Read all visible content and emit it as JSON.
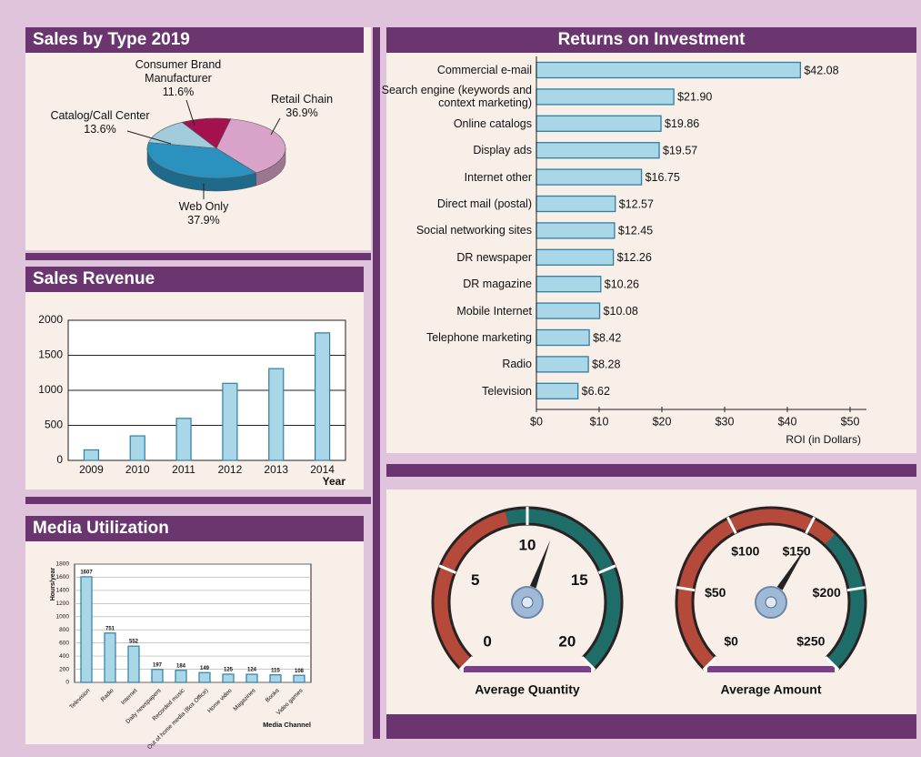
{
  "chart_data": [
    {
      "type": "pie",
      "title": "Sales by Type 2019",
      "categories": [
        "Retail Chain",
        "Web Only",
        "Catalog/Call Center",
        "Consumer Brand Manufacturer"
      ],
      "values": [
        36.9,
        37.9,
        13.6,
        11.6
      ],
      "value_labels": [
        "36.9%",
        "37.9%",
        "13.6%",
        "11.6%"
      ],
      "colors": [
        "#d9a3c9",
        "#2b92c0",
        "#a2ccdb",
        "#a3124f"
      ]
    },
    {
      "type": "bar",
      "title": "Sales Revenue",
      "x_label": "Year",
      "categories": [
        "2009",
        "2010",
        "2011",
        "2012",
        "2013",
        "2014"
      ],
      "values": [
        150,
        350,
        600,
        1100,
        1310,
        1820
      ],
      "color": "#a9d7e8",
      "ylim": [
        0,
        2000
      ],
      "yticks": [
        0,
        500,
        1000,
        1500,
        2000
      ],
      "grid": true
    },
    {
      "type": "bar",
      "title": "Media Utilization",
      "y_label": "Hours/year",
      "x_label": "Media Channel",
      "categories": [
        "Television",
        "Radio",
        "Internet",
        "Daily newspapers",
        "Recorded music",
        "Out of home media (Box Office)",
        "Home video",
        "Magazines",
        "Books",
        "Video games"
      ],
      "values": [
        1607,
        751,
        552,
        197,
        184,
        149,
        125,
        124,
        115,
        108
      ],
      "color": "#a9d7e8",
      "ylim": [
        0,
        1800
      ],
      "yticks": [
        0,
        200,
        400,
        600,
        800,
        1000,
        1200,
        1400,
        1600,
        1800
      ],
      "grid": true,
      "data_labels": true
    },
    {
      "type": "hbar",
      "title": "Returns on Investment",
      "x_label": "ROI (in Dollars)",
      "categories": [
        "Commercial e-mail",
        "Search engine (keywords and context marketing)",
        "Online catalogs",
        "Display ads",
        "Internet other",
        "Direct mail (postal)",
        "Social networking sites",
        "DR newspaper",
        "DR magazine",
        "Mobile Internet",
        "Telephone marketing",
        "Radio",
        "Television"
      ],
      "values": [
        42.08,
        21.9,
        19.86,
        19.57,
        16.75,
        12.57,
        12.45,
        12.26,
        10.26,
        10.08,
        8.42,
        8.28,
        6.62
      ],
      "value_labels": [
        "$42.08",
        "$21.90",
        "$19.86",
        "$19.57",
        "$16.75",
        "$12.57",
        "$12.45",
        "$12.26",
        "$10.26",
        "$10.08",
        "$8.42",
        "$8.28",
        "$6.62"
      ],
      "color": "#a9d7e8",
      "xlim": [
        0,
        50
      ],
      "xticks": [
        {
          "value": 0,
          "label": "$0"
        },
        {
          "value": 10,
          "label": "$10"
        },
        {
          "value": 20,
          "label": "$20"
        },
        {
          "value": 30,
          "label": "$30"
        },
        {
          "value": 40,
          "label": "$40"
        },
        {
          "value": 50,
          "label": "$50"
        }
      ]
    },
    {
      "type": "gauge",
      "title": "Average Quantity",
      "value": 11.5,
      "ylim": [
        0,
        20
      ],
      "yticks": [
        0,
        5,
        10,
        15,
        20
      ],
      "bands": [
        {
          "from": 0,
          "to": 9,
          "color": "#b5493a"
        },
        {
          "from": 9,
          "to": 20,
          "color": "#1f6d69"
        }
      ]
    },
    {
      "type": "gauge",
      "title": "Average Amount",
      "value": 155,
      "ylim": [
        0,
        250
      ],
      "yticks": [
        {
          "value": 0,
          "label": "$0"
        },
        {
          "value": 50,
          "label": "$50"
        },
        {
          "value": 100,
          "label": "$100"
        },
        {
          "value": 150,
          "label": "$150"
        },
        {
          "value": 200,
          "label": "$200"
        },
        {
          "value": 250,
          "label": "$250"
        }
      ],
      "bands": [
        {
          "from": 0,
          "to": 165,
          "color": "#b5493a"
        },
        {
          "from": 165,
          "to": 250,
          "color": "#1f6d69"
        }
      ]
    }
  ]
}
